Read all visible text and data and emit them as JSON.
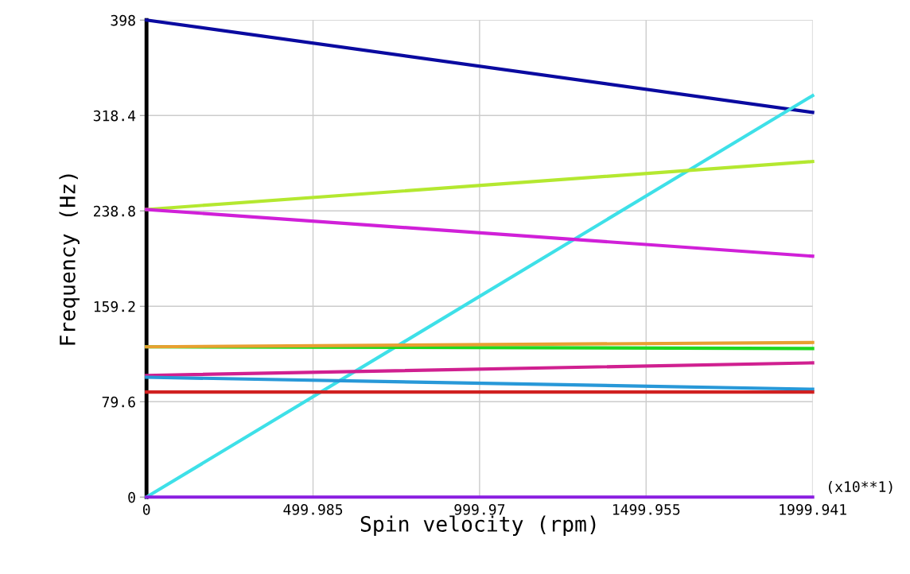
{
  "chart_data": {
    "type": "line",
    "xlabel": "Spin velocity (rpm)",
    "ylabel": "Frequency (Hz)",
    "x": [
      0,
      1999.941
    ],
    "series": [
      {
        "color": "#0a0aa0",
        "values": [
          398,
          321
        ]
      },
      {
        "color": "#3ee0e8",
        "values": [
          0,
          335
        ]
      },
      {
        "color": "#b4e830",
        "values": [
          240,
          280
        ]
      },
      {
        "color": "#d020d8",
        "values": [
          240,
          201
        ]
      },
      {
        "color": "#20d820",
        "values": [
          125.4,
          124
        ]
      },
      {
        "color": "#e8a030",
        "values": [
          125.4,
          129
        ]
      },
      {
        "color": "#d02090",
        "values": [
          101.5,
          112
        ]
      },
      {
        "color": "#2898d8",
        "values": [
          100,
          90
        ]
      },
      {
        "color": "#d02020",
        "values": [
          87.6,
          87.6
        ]
      },
      {
        "color": "#8a1ee0",
        "values": [
          0,
          0
        ]
      }
    ],
    "xlim": [
      0,
      1999.941
    ],
    "xticks": [
      0,
      499.985,
      999.97,
      1499.955,
      1999.941
    ],
    "ylim": [
      0,
      398
    ],
    "yticks": [
      0,
      79.6,
      159.2,
      238.8,
      318.4,
      398
    ],
    "grid": true,
    "legend": false,
    "marker": "none",
    "line_style": "solid",
    "annotations": [
      "(x10**1)"
    ]
  }
}
